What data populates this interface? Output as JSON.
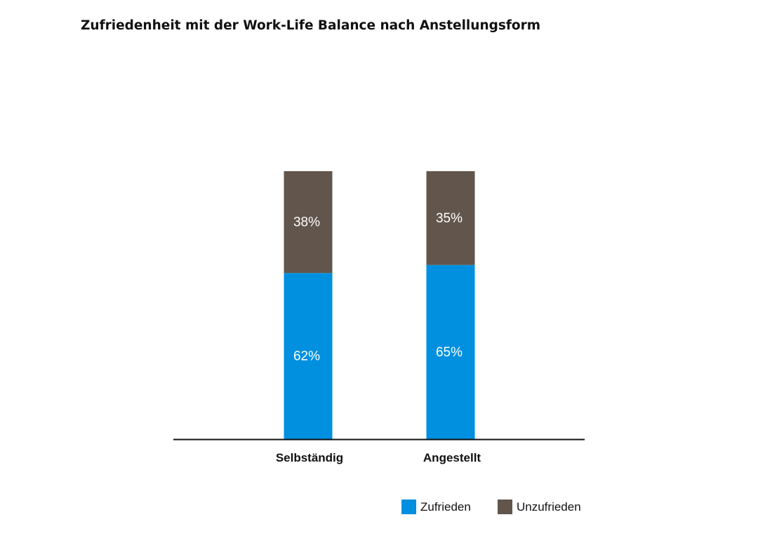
{
  "chart_data": {
    "type": "bar",
    "stacked": true,
    "title": "Zufriedenheit mit der Work-Life Balance nach Anstellungsform",
    "categories": [
      "Selbständig",
      "Angestellt"
    ],
    "series": [
      {
        "name": "Zufrieden",
        "values": [
          62,
          65
        ],
        "labels": [
          "62%",
          "65%"
        ],
        "color": "#0090df"
      },
      {
        "name": "Unzufrieden",
        "values": [
          38,
          35
        ],
        "labels": [
          "38%",
          "35%"
        ],
        "color": "#62554b"
      }
    ],
    "ylim": [
      0,
      100
    ],
    "grid": false,
    "legend": "bottom-right"
  }
}
